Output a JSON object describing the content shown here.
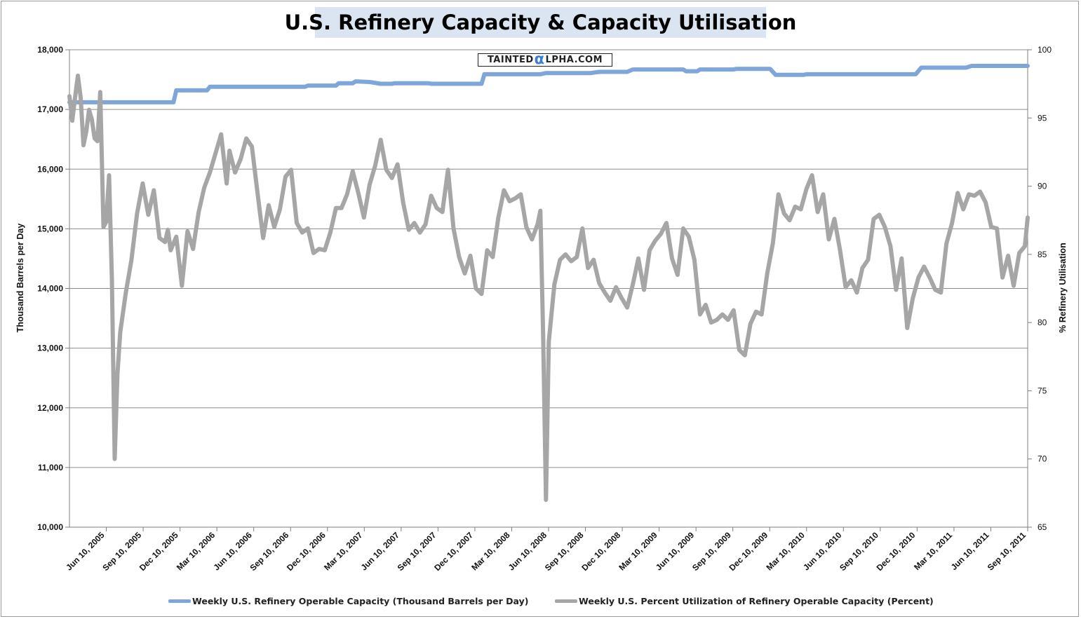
{
  "chart_data": {
    "type": "line",
    "title": "U.S. Refinery Capacity & Capacity Utilisation",
    "watermark": {
      "prefix": "TAINTED",
      "glyph": "α",
      "suffix": "LPHA.COM"
    },
    "x_tick_labels": [
      "Jun 10, 2005",
      "Sep 10, 2005",
      "Dec 10, 2005",
      "Mar 10, 2006",
      "Jun 10, 2006",
      "Sep 10, 2006",
      "Dec 10, 2006",
      "Mar 10, 2007",
      "Jun 10, 2007",
      "Sep 10, 2007",
      "Dec 10, 2007",
      "Mar 10, 2008",
      "Jun 10, 2008",
      "Sep 10, 2008",
      "Dec 10, 2008",
      "Mar 10, 2009",
      "Jun 10, 2009",
      "Sep 10, 2009",
      "Dec 10, 2009",
      "Mar 10, 2010",
      "Jun 10, 2010",
      "Sep 10, 2010",
      "Dec 10, 2010",
      "Mar 10, 2011",
      "Jun 10, 2011",
      "Sep 10, 2011"
    ],
    "x_range": [
      "2005-06-10",
      "2011-12-31"
    ],
    "y_left": {
      "label": "Thousand Barrels per Day",
      "min": 10000,
      "max": 18000,
      "ticks": [
        "10,000",
        "11,000",
        "12,000",
        "13,000",
        "14,000",
        "15,000",
        "16,000",
        "17,000",
        "18,000"
      ]
    },
    "y_right": {
      "label": "% Refinery Utilisation",
      "min": 65,
      "max": 100,
      "ticks": [
        "65",
        "70",
        "75",
        "80",
        "85",
        "90",
        "95",
        "100"
      ]
    },
    "grid": "horizontal",
    "legend_position": "bottom",
    "series": [
      {
        "name": "Weekly U.S. Refinery Operable Capacity  (Thousand Barrels per Day)",
        "axis": "left",
        "color": "#7ea6d8",
        "points": [
          [
            "2005-06-10",
            17120
          ],
          [
            "2006-02-25",
            17120
          ],
          [
            "2006-03-04",
            17320
          ],
          [
            "2006-05-20",
            17320
          ],
          [
            "2006-05-27",
            17380
          ],
          [
            "2007-01-20",
            17380
          ],
          [
            "2007-01-27",
            17400
          ],
          [
            "2007-04-07",
            17400
          ],
          [
            "2007-04-14",
            17440
          ],
          [
            "2007-05-19",
            17440
          ],
          [
            "2007-05-26",
            17470
          ],
          [
            "2007-06-30",
            17460
          ],
          [
            "2007-07-28",
            17430
          ],
          [
            "2007-08-25",
            17430
          ],
          [
            "2007-09-01",
            17440
          ],
          [
            "2007-11-24",
            17440
          ],
          [
            "2007-12-01",
            17430
          ],
          [
            "2008-04-05",
            17430
          ],
          [
            "2008-04-12",
            17590
          ],
          [
            "2008-08-30",
            17590
          ],
          [
            "2008-09-13",
            17610
          ],
          [
            "2009-01-03",
            17610
          ],
          [
            "2009-01-24",
            17630
          ],
          [
            "2009-04-04",
            17630
          ],
          [
            "2009-04-18",
            17670
          ],
          [
            "2009-08-22",
            17670
          ],
          [
            "2009-08-29",
            17640
          ],
          [
            "2009-09-26",
            17640
          ],
          [
            "2009-10-03",
            17670
          ],
          [
            "2009-12-26",
            17670
          ],
          [
            "2010-01-02",
            17680
          ],
          [
            "2010-03-27",
            17680
          ],
          [
            "2010-04-10",
            17580
          ],
          [
            "2010-06-19",
            17580
          ],
          [
            "2010-06-26",
            17590
          ],
          [
            "2011-03-26",
            17590
          ],
          [
            "2011-04-09",
            17700
          ],
          [
            "2011-07-30",
            17700
          ],
          [
            "2011-08-13",
            17730
          ],
          [
            "2011-12-31",
            17730
          ]
        ]
      },
      {
        "name": "Weekly U.S. Percent Utilization of Refinery Operable Capacity  (Percent)",
        "axis": "right",
        "color": "#a6a6a6",
        "points": [
          [
            "2005-06-10",
            96.6
          ],
          [
            "2005-06-17",
            94.8
          ],
          [
            "2005-06-24",
            96.5
          ],
          [
            "2005-07-01",
            98.1
          ],
          [
            "2005-07-08",
            96.5
          ],
          [
            "2005-07-15",
            93.0
          ],
          [
            "2005-07-22",
            94.0
          ],
          [
            "2005-07-29",
            95.6
          ],
          [
            "2005-08-05",
            94.9
          ],
          [
            "2005-08-12",
            93.5
          ],
          [
            "2005-08-19",
            93.3
          ],
          [
            "2005-08-26",
            96.9
          ],
          [
            "2005-09-03",
            87.0
          ],
          [
            "2005-09-10",
            87.4
          ],
          [
            "2005-09-17",
            90.8
          ],
          [
            "2005-09-24",
            83.2
          ],
          [
            "2005-10-01",
            70.0
          ],
          [
            "2005-10-08",
            76.2
          ],
          [
            "2005-10-15",
            79.3
          ],
          [
            "2005-10-29",
            82.2
          ],
          [
            "2005-11-12",
            84.6
          ],
          [
            "2005-11-26",
            88.0
          ],
          [
            "2005-12-10",
            90.2
          ],
          [
            "2005-12-24",
            87.9
          ],
          [
            "2006-01-07",
            89.7
          ],
          [
            "2006-01-21",
            86.2
          ],
          [
            "2006-02-04",
            85.9
          ],
          [
            "2006-02-11",
            86.8
          ],
          [
            "2006-02-18",
            85.3
          ],
          [
            "2006-03-04",
            86.3
          ],
          [
            "2006-03-18",
            82.7
          ],
          [
            "2006-04-01",
            86.7
          ],
          [
            "2006-04-15",
            85.4
          ],
          [
            "2006-04-29",
            88.1
          ],
          [
            "2006-05-13",
            89.9
          ],
          [
            "2006-05-27",
            91.0
          ],
          [
            "2006-06-10",
            92.4
          ],
          [
            "2006-06-24",
            93.8
          ],
          [
            "2006-07-08",
            90.2
          ],
          [
            "2006-07-15",
            92.6
          ],
          [
            "2006-07-29",
            91.0
          ],
          [
            "2006-08-12",
            92.0
          ],
          [
            "2006-08-26",
            93.5
          ],
          [
            "2006-09-09",
            92.9
          ],
          [
            "2006-09-23",
            89.5
          ],
          [
            "2006-10-07",
            86.2
          ],
          [
            "2006-10-21",
            88.6
          ],
          [
            "2006-11-04",
            87.0
          ],
          [
            "2006-11-18",
            88.3
          ],
          [
            "2006-12-02",
            90.7
          ],
          [
            "2006-12-16",
            91.2
          ],
          [
            "2006-12-30",
            87.3
          ],
          [
            "2007-01-13",
            86.6
          ],
          [
            "2007-01-27",
            86.9
          ],
          [
            "2007-02-10",
            85.1
          ],
          [
            "2007-02-24",
            85.4
          ],
          [
            "2007-03-10",
            85.3
          ],
          [
            "2007-03-24",
            86.6
          ],
          [
            "2007-04-07",
            88.4
          ],
          [
            "2007-04-21",
            88.4
          ],
          [
            "2007-05-05",
            89.4
          ],
          [
            "2007-05-19",
            91.1
          ],
          [
            "2007-06-02",
            89.5
          ],
          [
            "2007-06-16",
            87.7
          ],
          [
            "2007-06-30",
            90.1
          ],
          [
            "2007-07-14",
            91.5
          ],
          [
            "2007-07-28",
            93.4
          ],
          [
            "2007-08-11",
            91.2
          ],
          [
            "2007-08-25",
            90.6
          ],
          [
            "2007-09-08",
            91.6
          ],
          [
            "2007-09-22",
            88.8
          ],
          [
            "2007-10-06",
            86.8
          ],
          [
            "2007-10-20",
            87.3
          ],
          [
            "2007-11-03",
            86.6
          ],
          [
            "2007-11-17",
            87.2
          ],
          [
            "2007-12-01",
            89.3
          ],
          [
            "2007-12-15",
            88.4
          ],
          [
            "2007-12-29",
            88.1
          ],
          [
            "2008-01-12",
            91.2
          ],
          [
            "2008-01-26",
            86.9
          ],
          [
            "2008-02-09",
            84.8
          ],
          [
            "2008-02-23",
            83.6
          ],
          [
            "2008-03-08",
            84.9
          ],
          [
            "2008-03-22",
            82.5
          ],
          [
            "2008-04-05",
            82.1
          ],
          [
            "2008-04-19",
            85.3
          ],
          [
            "2008-05-03",
            84.8
          ],
          [
            "2008-05-17",
            87.7
          ],
          [
            "2008-05-31",
            89.7
          ],
          [
            "2008-06-14",
            88.9
          ],
          [
            "2008-06-28",
            89.1
          ],
          [
            "2008-07-12",
            89.4
          ],
          [
            "2008-07-26",
            87.0
          ],
          [
            "2008-08-09",
            86.1
          ],
          [
            "2008-08-23",
            87.2
          ],
          [
            "2008-08-30",
            88.2
          ],
          [
            "2008-09-06",
            79.0
          ],
          [
            "2008-09-13",
            67.0
          ],
          [
            "2008-09-20",
            78.6
          ],
          [
            "2008-10-04",
            82.8
          ],
          [
            "2008-10-18",
            84.6
          ],
          [
            "2008-11-01",
            85.0
          ],
          [
            "2008-11-15",
            84.5
          ],
          [
            "2008-11-29",
            84.8
          ],
          [
            "2008-12-13",
            86.9
          ],
          [
            "2008-12-27",
            84.0
          ],
          [
            "2009-01-10",
            84.6
          ],
          [
            "2009-01-24",
            82.9
          ],
          [
            "2009-02-07",
            82.2
          ],
          [
            "2009-02-21",
            81.6
          ],
          [
            "2009-03-07",
            82.6
          ],
          [
            "2009-03-21",
            81.8
          ],
          [
            "2009-04-04",
            81.1
          ],
          [
            "2009-04-18",
            82.8
          ],
          [
            "2009-05-02",
            84.7
          ],
          [
            "2009-05-16",
            82.4
          ],
          [
            "2009-05-30",
            85.3
          ],
          [
            "2009-06-13",
            86.0
          ],
          [
            "2009-06-27",
            86.5
          ],
          [
            "2009-07-11",
            87.3
          ],
          [
            "2009-07-25",
            84.7
          ],
          [
            "2009-08-08",
            83.5
          ],
          [
            "2009-08-22",
            86.9
          ],
          [
            "2009-09-05",
            86.3
          ],
          [
            "2009-09-19",
            84.6
          ],
          [
            "2009-10-03",
            80.6
          ],
          [
            "2009-10-17",
            81.3
          ],
          [
            "2009-10-31",
            80.0
          ],
          [
            "2009-11-14",
            80.2
          ],
          [
            "2009-11-28",
            80.6
          ],
          [
            "2009-12-12",
            80.2
          ],
          [
            "2009-12-26",
            80.9
          ],
          [
            "2010-01-09",
            78.0
          ],
          [
            "2010-01-23",
            77.6
          ],
          [
            "2010-02-06",
            79.9
          ],
          [
            "2010-02-20",
            80.8
          ],
          [
            "2010-03-06",
            80.6
          ],
          [
            "2010-03-20",
            83.6
          ],
          [
            "2010-04-03",
            85.8
          ],
          [
            "2010-04-17",
            89.4
          ],
          [
            "2010-05-01",
            88.0
          ],
          [
            "2010-05-15",
            87.5
          ],
          [
            "2010-05-29",
            88.5
          ],
          [
            "2010-06-12",
            88.3
          ],
          [
            "2010-06-26",
            89.8
          ],
          [
            "2010-07-10",
            90.8
          ],
          [
            "2010-07-24",
            88.1
          ],
          [
            "2010-08-07",
            89.4
          ],
          [
            "2010-08-21",
            86.1
          ],
          [
            "2010-09-04",
            87.6
          ],
          [
            "2010-09-18",
            85.3
          ],
          [
            "2010-10-02",
            82.6
          ],
          [
            "2010-10-16",
            83.1
          ],
          [
            "2010-10-30",
            82.2
          ],
          [
            "2010-11-13",
            84.0
          ],
          [
            "2010-11-27",
            84.6
          ],
          [
            "2010-12-11",
            87.6
          ],
          [
            "2010-12-25",
            87.9
          ],
          [
            "2011-01-08",
            87.0
          ],
          [
            "2011-01-22",
            85.6
          ],
          [
            "2011-02-05",
            82.4
          ],
          [
            "2011-02-19",
            84.7
          ],
          [
            "2011-03-05",
            79.6
          ],
          [
            "2011-03-19",
            81.8
          ],
          [
            "2011-04-02",
            83.3
          ],
          [
            "2011-04-16",
            84.1
          ],
          [
            "2011-04-30",
            83.3
          ],
          [
            "2011-05-14",
            82.4
          ],
          [
            "2011-05-28",
            82.2
          ],
          [
            "2011-06-11",
            85.8
          ],
          [
            "2011-06-25",
            87.3
          ],
          [
            "2011-07-09",
            89.5
          ],
          [
            "2011-07-23",
            88.3
          ],
          [
            "2011-08-06",
            89.4
          ],
          [
            "2011-08-20",
            89.3
          ],
          [
            "2011-09-03",
            89.6
          ],
          [
            "2011-09-17",
            88.8
          ],
          [
            "2011-10-01",
            87.0
          ],
          [
            "2011-10-15",
            86.9
          ],
          [
            "2011-10-29",
            83.3
          ],
          [
            "2011-11-12",
            84.9
          ],
          [
            "2011-11-26",
            82.7
          ],
          [
            "2011-12-10",
            85.1
          ],
          [
            "2011-12-24",
            85.6
          ],
          [
            "2011-12-31",
            87.7
          ]
        ]
      }
    ]
  }
}
